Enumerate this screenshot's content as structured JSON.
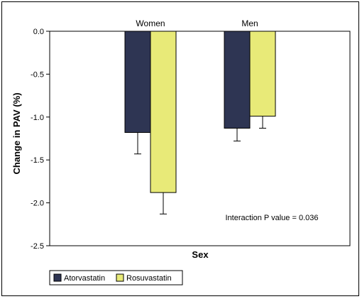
{
  "chart_data": {
    "type": "bar",
    "categories": [
      "Women",
      "Men"
    ],
    "series": [
      {
        "name": "Atorvastatin",
        "values": [
          -1.18,
          -1.13
        ],
        "errors": [
          0.25,
          0.15
        ],
        "color": "#2e3553"
      },
      {
        "name": "Rosuvastatin",
        "values": [
          -1.88,
          -0.99
        ],
        "errors": [
          0.25,
          0.14
        ],
        "color": "#e8ea78"
      }
    ],
    "xlabel": "Sex",
    "ylabel": "Change in PAV (%)",
    "ylim": [
      -2.5,
      0.0
    ],
    "yticks": [
      "0.0",
      "-0.5",
      "-1.0",
      "-1.5",
      "-2.0",
      "-2.5"
    ],
    "annotation": "Interaction P value = 0.036",
    "legend_position": "bottom-left",
    "grid": false
  }
}
